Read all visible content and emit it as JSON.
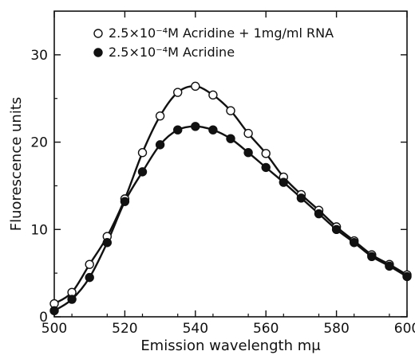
{
  "chart_data": {
    "type": "line",
    "title": "",
    "xlabel": "Emission wavelength mμ",
    "ylabel": "Fluorescence units",
    "xlim": [
      500,
      600
    ],
    "ylim": [
      0,
      35
    ],
    "xticks": [
      500,
      520,
      540,
      560,
      580,
      600
    ],
    "xtick_labels": [
      "500",
      "520",
      "540",
      "560",
      "580",
      "600"
    ],
    "yticks": [
      0,
      10,
      20,
      30
    ],
    "ytick_labels": [
      "0",
      "10",
      "20",
      "30"
    ],
    "grid": false,
    "legend_position": "top",
    "series": [
      {
        "name": "2.5×10⁻⁴M Acridine + 1mg/ml RNA",
        "marker": "open-circle",
        "color": "#111111",
        "x": [
          500,
          505,
          510,
          515,
          520,
          525,
          530,
          535,
          540,
          545,
          550,
          555,
          560,
          565,
          570,
          575,
          580,
          585,
          590,
          595,
          600
        ],
        "y": [
          1.5,
          2.8,
          6.0,
          9.2,
          13.5,
          18.8,
          23.0,
          25.7,
          26.4,
          25.4,
          23.6,
          21.0,
          18.7,
          16.0,
          14.0,
          12.2,
          10.3,
          8.7,
          7.1,
          6.0,
          4.8
        ]
      },
      {
        "name": "2.5×10⁻⁴M Acridine",
        "marker": "filled-circle",
        "color": "#111111",
        "x": [
          500,
          505,
          510,
          515,
          520,
          525,
          530,
          535,
          540,
          545,
          550,
          555,
          560,
          565,
          570,
          575,
          580,
          585,
          590,
          595,
          600
        ],
        "y": [
          0.7,
          2.0,
          4.5,
          8.5,
          13.2,
          16.6,
          19.7,
          21.4,
          21.8,
          21.4,
          20.4,
          18.8,
          17.1,
          15.4,
          13.6,
          11.8,
          10.0,
          8.5,
          6.9,
          5.8,
          4.6
        ]
      }
    ]
  }
}
